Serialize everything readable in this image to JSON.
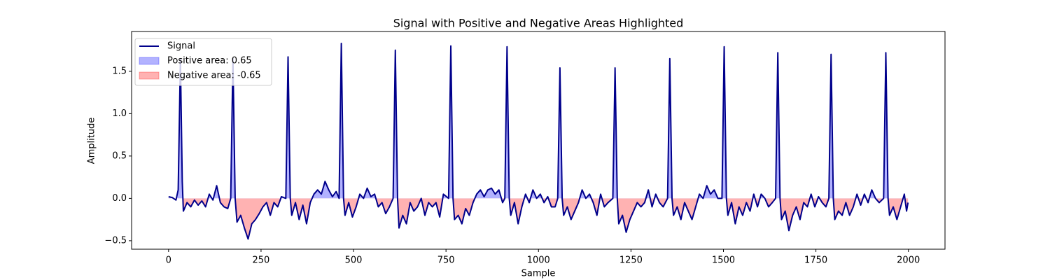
{
  "chart_data": {
    "type": "line",
    "title": "Signal with Positive and Negative Areas Highlighted",
    "x_label": "Sample",
    "y_label": "Amplitude",
    "xlim": [
      -99.95,
      2098.95
    ],
    "ylim": [
      -0.6,
      1.97
    ],
    "xticks": [
      0,
      250,
      500,
      750,
      1000,
      1250,
      1500,
      1750,
      2000
    ],
    "yticks": [
      {
        "value": -0.5,
        "label": "−0.5"
      },
      {
        "value": 0,
        "label": "0.0"
      },
      {
        "value": 0.5,
        "label": "0.5"
      },
      {
        "value": 1,
        "label": "1.0"
      },
      {
        "value": 1.5,
        "label": "1.5"
      }
    ],
    "legend_position": "upper left",
    "legend": [
      "Positive area: 0.65",
      "Negative area: -0.65"
    ],
    "positive_color": "#0000ff",
    "negative_color": "#ff0000",
    "series": [
      {
        "name": "Signal",
        "color": "#00008b",
        "x": [
          0,
          10,
          20,
          26,
          32,
          37,
          40,
          50,
          60,
          70,
          80,
          90,
          100,
          110,
          120,
          130,
          140,
          150,
          160,
          168,
          174,
          180,
          185,
          195,
          205,
          215,
          225,
          235,
          245,
          255,
          265,
          275,
          285,
          295,
          305,
          317,
          323,
          329,
          333,
          343,
          353,
          363,
          373,
          383,
          393,
          403,
          413,
          423,
          433,
          443,
          453,
          461,
          467,
          473,
          477,
          487,
          497,
          507,
          517,
          527,
          537,
          547,
          557,
          567,
          577,
          587,
          597,
          607,
          613,
          619,
          623,
          633,
          643,
          653,
          663,
          673,
          683,
          693,
          703,
          713,
          723,
          733,
          743,
          757,
          763,
          769,
          773,
          783,
          793,
          803,
          813,
          823,
          833,
          843,
          853,
          863,
          873,
          883,
          893,
          903,
          909,
          915,
          921,
          925,
          935,
          945,
          955,
          965,
          975,
          985,
          995,
          1005,
          1015,
          1025,
          1035,
          1045,
          1052,
          1058,
          1064,
          1068,
          1078,
          1088,
          1098,
          1108,
          1118,
          1128,
          1138,
          1148,
          1158,
          1168,
          1178,
          1188,
          1201,
          1207,
          1213,
          1217,
          1227,
          1237,
          1247,
          1257,
          1267,
          1277,
          1287,
          1297,
          1307,
          1317,
          1327,
          1337,
          1349,
          1355,
          1361,
          1365,
          1375,
          1385,
          1395,
          1405,
          1415,
          1425,
          1435,
          1445,
          1455,
          1465,
          1475,
          1485,
          1496,
          1502,
          1508,
          1512,
          1522,
          1532,
          1542,
          1552,
          1562,
          1572,
          1582,
          1592,
          1602,
          1612,
          1622,
          1632,
          1641,
          1647,
          1653,
          1657,
          1667,
          1677,
          1687,
          1697,
          1707,
          1717,
          1727,
          1737,
          1747,
          1757,
          1767,
          1777,
          1785,
          1791,
          1797,
          1801,
          1811,
          1821,
          1831,
          1841,
          1851,
          1861,
          1871,
          1881,
          1891,
          1901,
          1911,
          1921,
          1933,
          1939,
          1945,
          1949,
          1959,
          1969,
          1979,
          1989,
          1995,
          1999
        ],
        "values": [
          0.02,
          0.01,
          -0.02,
          0.1,
          1.65,
          0.2,
          -0.15,
          -0.05,
          -0.1,
          -0.02,
          -0.08,
          -0.03,
          -0.1,
          0.05,
          -0.02,
          0.15,
          -0.05,
          -0.1,
          -0.12,
          0.0,
          1.65,
          0.0,
          -0.28,
          -0.2,
          -0.35,
          -0.48,
          -0.3,
          -0.25,
          -0.18,
          -0.1,
          -0.05,
          -0.2,
          -0.05,
          -0.1,
          0.02,
          0.0,
          1.67,
          0.0,
          -0.2,
          -0.05,
          -0.25,
          -0.08,
          -0.3,
          -0.05,
          0.05,
          0.1,
          0.05,
          0.2,
          0.1,
          0.02,
          0.08,
          0.0,
          1.83,
          0.0,
          -0.2,
          -0.05,
          -0.22,
          -0.1,
          0.05,
          0.0,
          0.12,
          0.02,
          0.05,
          -0.1,
          -0.05,
          -0.18,
          -0.1,
          0.0,
          1.75,
          0.0,
          -0.35,
          -0.2,
          -0.3,
          -0.05,
          -0.15,
          -0.1,
          0.0,
          -0.2,
          -0.05,
          -0.1,
          -0.05,
          -0.22,
          0.05,
          0.0,
          1.8,
          0.0,
          -0.25,
          -0.2,
          -0.3,
          -0.12,
          -0.2,
          -0.05,
          0.05,
          0.1,
          0.02,
          0.1,
          0.12,
          0.05,
          0.1,
          -0.05,
          0.0,
          1.79,
          0.0,
          -0.2,
          -0.05,
          -0.3,
          -0.1,
          0.05,
          -0.05,
          0.1,
          0.0,
          0.05,
          -0.05,
          0.02,
          -0.1,
          -0.1,
          0.0,
          1.54,
          0.0,
          -0.2,
          -0.1,
          -0.25,
          -0.15,
          -0.05,
          0.1,
          0.0,
          0.05,
          -0.05,
          -0.2,
          0.05,
          -0.1,
          -0.05,
          0.0,
          1.54,
          0.0,
          -0.3,
          -0.2,
          -0.4,
          -0.25,
          -0.15,
          -0.05,
          -0.1,
          -0.05,
          0.1,
          -0.1,
          0.05,
          -0.05,
          -0.1,
          0.0,
          1.65,
          0.0,
          -0.2,
          -0.1,
          -0.25,
          -0.05,
          -0.15,
          -0.25,
          -0.1,
          0.05,
          0.0,
          0.15,
          0.05,
          0.1,
          0.0,
          0.0,
          1.79,
          0.0,
          -0.2,
          -0.05,
          -0.3,
          -0.1,
          -0.2,
          -0.05,
          -0.15,
          0.05,
          -0.1,
          0.05,
          0.0,
          -0.1,
          -0.05,
          0.0,
          1.72,
          0.0,
          -0.25,
          -0.15,
          -0.38,
          -0.2,
          -0.1,
          -0.25,
          -0.05,
          -0.1,
          0.05,
          -0.1,
          0.02,
          -0.05,
          -0.1,
          0.0,
          1.7,
          0.0,
          -0.25,
          -0.15,
          -0.2,
          -0.05,
          -0.2,
          -0.1,
          0.05,
          -0.08,
          0.05,
          -0.05,
          0.1,
          0.0,
          -0.05,
          0.0,
          1.72,
          0.0,
          -0.2,
          -0.1,
          -0.25,
          -0.1,
          0.05,
          -0.15,
          -0.05
        ]
      }
    ]
  }
}
